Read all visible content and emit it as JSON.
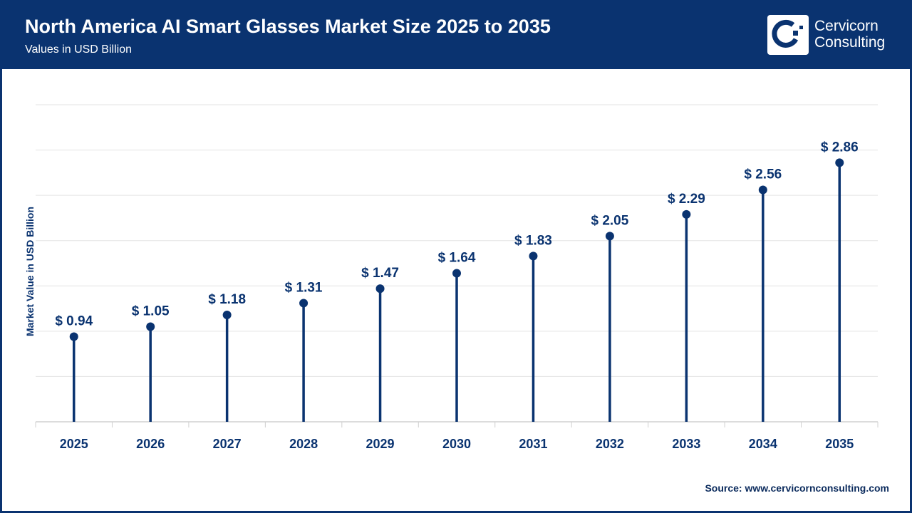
{
  "header": {
    "title": "North America AI Smart Glasses Market Size 2025 to 2035",
    "subtitle": "Values in USD Billion"
  },
  "logo": {
    "line1": "Cervicorn",
    "line2": "Consulting"
  },
  "source": "Source: www.cervicornconsulting.com",
  "colors": {
    "primary": "#0a3370",
    "grid": "#e3e3e3"
  },
  "chart_data": {
    "type": "lollipop",
    "title": "North America AI Smart Glasses Market Size 2025 to 2035",
    "subtitle": "Values in USD Billion",
    "xlabel": "",
    "ylabel": "Market Value in USD Billion",
    "ylim": [
      0,
      3.5
    ],
    "grid": true,
    "categories": [
      "2025",
      "2026",
      "2027",
      "2028",
      "2029",
      "2030",
      "2031",
      "2032",
      "2033",
      "2034",
      "2035"
    ],
    "values": [
      0.94,
      1.05,
      1.18,
      1.31,
      1.47,
      1.64,
      1.83,
      2.05,
      2.29,
      2.56,
      2.86
    ],
    "data_labels": [
      "$ 0.94",
      "$ 1.05",
      "$ 1.18",
      "$ 1.31",
      "$ 1.47",
      "$ 1.64",
      "$ 1.83",
      "$ 2.05",
      "$ 2.29",
      "$ 2.56",
      "$ 2.86"
    ]
  }
}
